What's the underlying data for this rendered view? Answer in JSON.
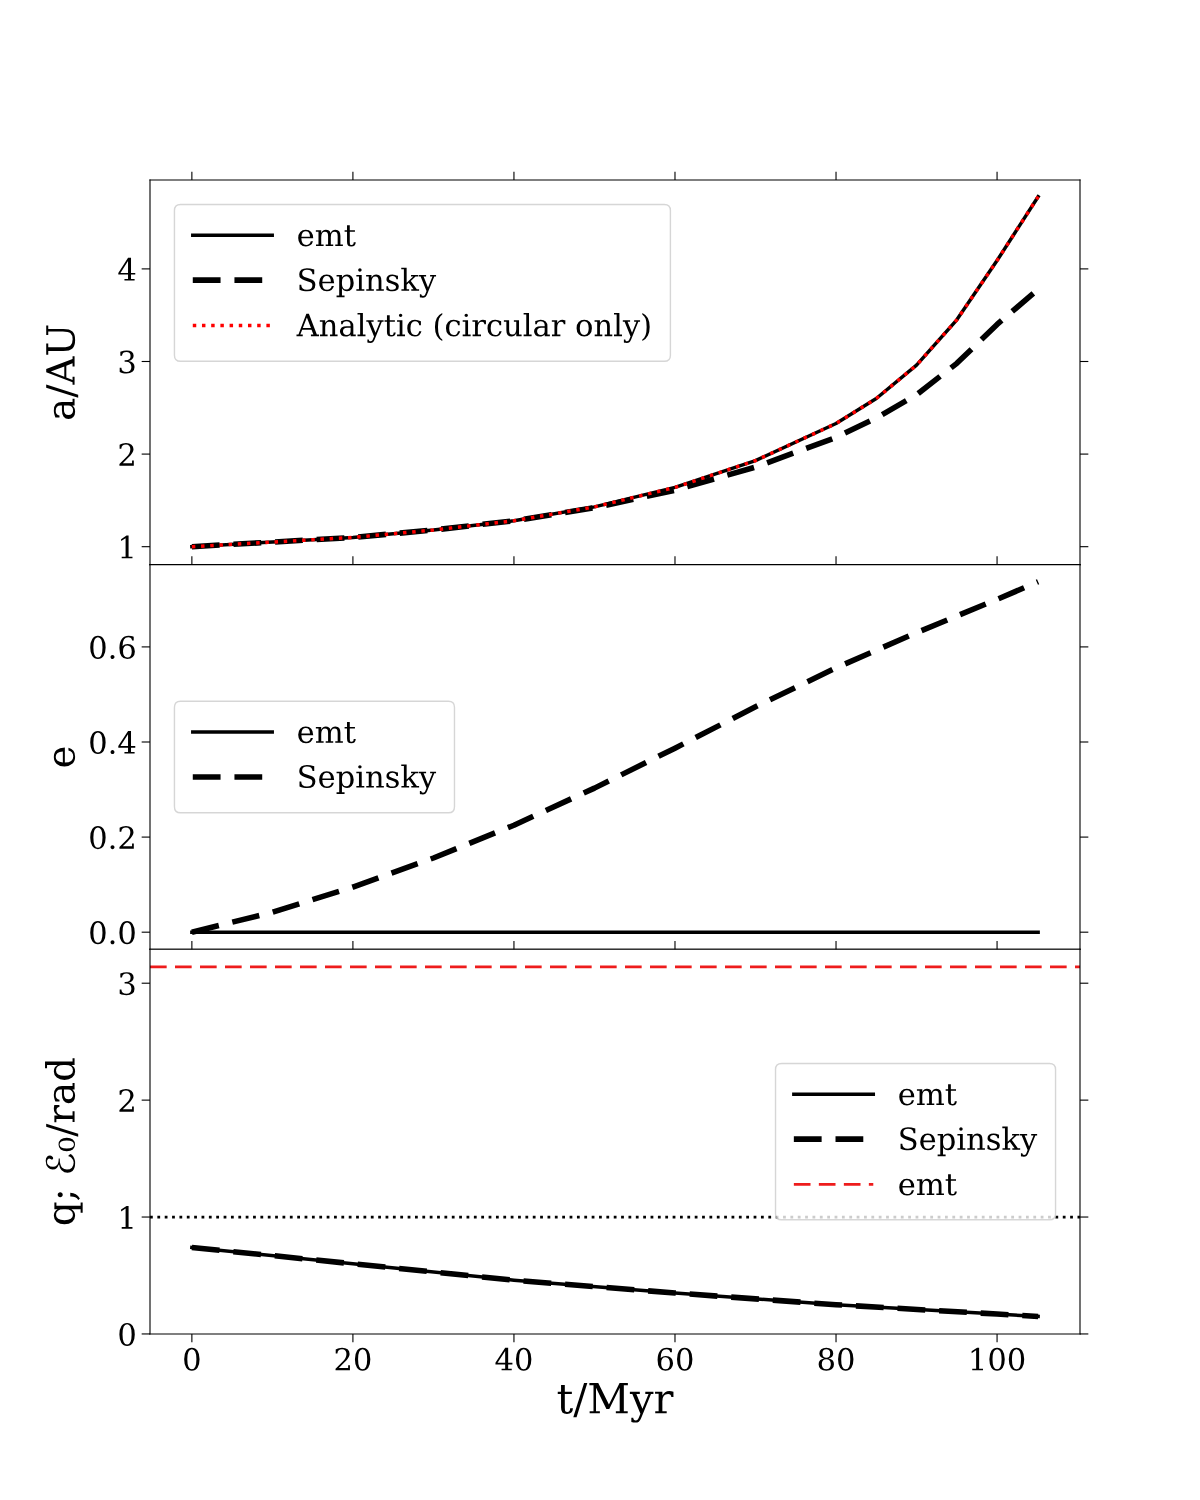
{
  "chart_data": [
    {
      "type": "line",
      "ylabel": "a/AU",
      "xlim": [
        -5.2,
        110.3
      ],
      "xticks": [
        0,
        20,
        40,
        60,
        80,
        100
      ],
      "ylim": [
        0.806,
        4.96
      ],
      "yticks": [
        1,
        2,
        3,
        4
      ],
      "tick_labels": "y",
      "legend": "top left",
      "grid": false,
      "series": [
        {
          "name": "emt",
          "color": "#000000",
          "line_style": "solid",
          "x": [
            0,
            10,
            20,
            30,
            40,
            50,
            60,
            70,
            80,
            85,
            90,
            95,
            100,
            105.1
          ],
          "values": [
            1.0,
            1.05,
            1.1,
            1.18,
            1.28,
            1.43,
            1.64,
            1.93,
            2.33,
            2.6,
            2.96,
            3.45,
            4.09,
            4.78
          ]
        },
        {
          "name": "Sepinsky",
          "color": "#000000",
          "line_style": "dashed",
          "x": [
            0,
            10,
            20,
            30,
            40,
            50,
            60,
            70,
            80,
            85,
            90,
            95,
            100,
            105.1
          ],
          "values": [
            1.0,
            1.05,
            1.1,
            1.18,
            1.28,
            1.42,
            1.61,
            1.86,
            2.18,
            2.39,
            2.64,
            2.98,
            3.4,
            3.78
          ]
        },
        {
          "name": "Analytic (circular only)",
          "color": "#ff0000",
          "line_style": "dotted",
          "x": [
            0,
            10,
            20,
            30,
            40,
            50,
            60,
            70,
            80,
            85,
            90,
            95,
            100,
            105.1
          ],
          "values": [
            1.0,
            1.05,
            1.1,
            1.18,
            1.28,
            1.43,
            1.64,
            1.93,
            2.33,
            2.6,
            2.96,
            3.45,
            4.09,
            4.78
          ]
        }
      ]
    },
    {
      "type": "line",
      "ylabel": "e",
      "xlim": [
        -5.2,
        110.3
      ],
      "xticks": [
        0,
        20,
        40,
        60,
        80,
        100
      ],
      "ylim": [
        -0.036,
        0.773
      ],
      "yticks": [
        {
          "value": 0,
          "label": "0.0"
        },
        {
          "value": 0.2,
          "label": "0.2"
        },
        {
          "value": 0.4,
          "label": "0.4"
        },
        {
          "value": 0.6,
          "label": "0.6"
        }
      ],
      "tick_labels": "y",
      "legend": "left",
      "grid": false,
      "series": [
        {
          "name": "emt",
          "color": "#000000",
          "line_style": "solid",
          "x": [
            0,
            105.1
          ],
          "values": [
            0,
            0
          ]
        },
        {
          "name": "Sepinsky",
          "color": "#000000",
          "line_style": "dashed",
          "x": [
            0,
            10,
            20,
            30,
            40,
            50,
            60,
            70,
            80,
            90,
            100,
            105.1
          ],
          "values": [
            0,
            0.042,
            0.095,
            0.156,
            0.225,
            0.303,
            0.387,
            0.474,
            0.556,
            0.63,
            0.7,
            0.737
          ]
        }
      ]
    },
    {
      "type": "line",
      "xlabel": "t/Myr",
      "ylabel": "q; ℰ₀/rad",
      "xlim": [
        -5.2,
        110.3
      ],
      "xticks": [
        0,
        20,
        40,
        60,
        80,
        100
      ],
      "ylim": [
        0,
        3.29
      ],
      "yticks": [
        0,
        1,
        2,
        3
      ],
      "legend": "right",
      "grid": false,
      "series": [
        {
          "name": "emt",
          "color": "#000000",
          "line_style": "solid",
          "x": [
            0,
            20,
            40,
            60,
            80,
            100,
            105.1
          ],
          "values": [
            0.74,
            0.6,
            0.46,
            0.35,
            0.25,
            0.17,
            0.15
          ]
        },
        {
          "name": "Sepinsky",
          "color": "#000000",
          "line_style": "dashed",
          "x": [
            0,
            20,
            40,
            60,
            80,
            100,
            105.1
          ],
          "values": [
            0.74,
            0.6,
            0.46,
            0.35,
            0.25,
            0.17,
            0.15
          ]
        }
      ],
      "ref_lines": [
        {
          "axis": "y",
          "value": 3.14,
          "label": "emt",
          "color": "#ee1c1c",
          "line_style": "dashed"
        },
        {
          "axis": "y",
          "value": 1,
          "color": "#000000",
          "line_style": "dotted"
        }
      ]
    }
  ]
}
